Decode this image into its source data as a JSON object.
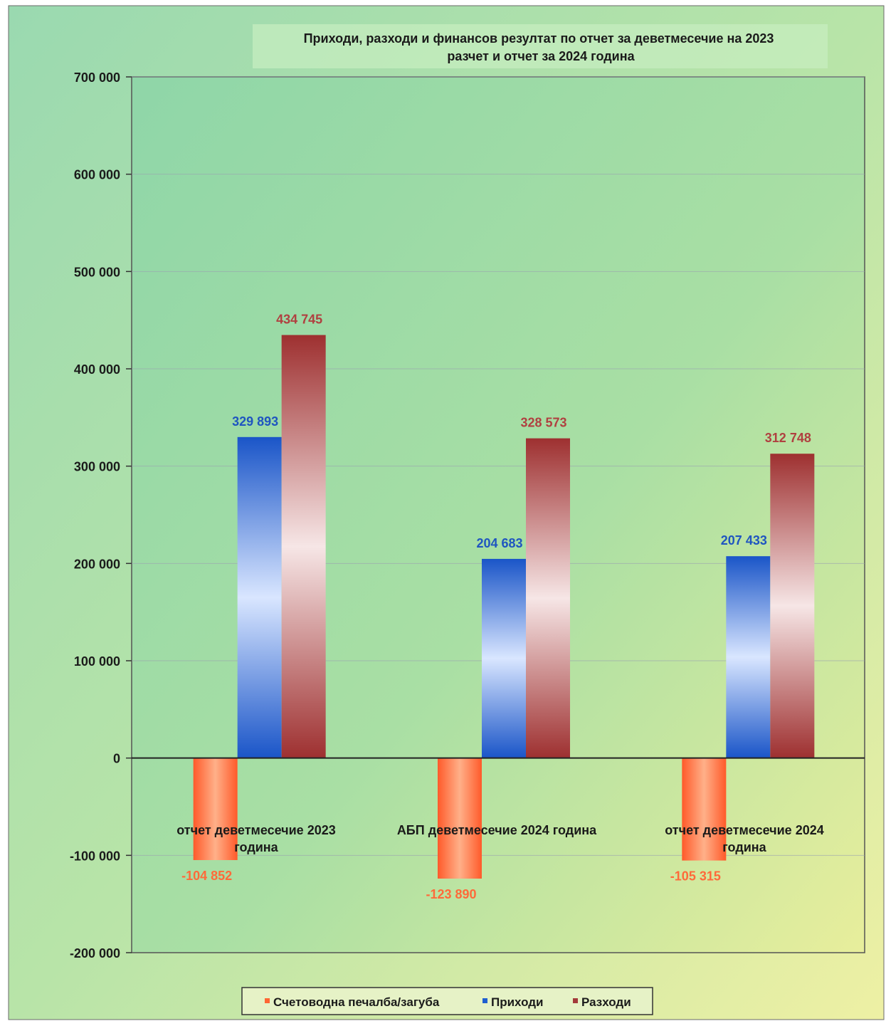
{
  "chart_data": {
    "type": "bar",
    "title": "Приходи, разходи и финансов резултат по отчет за деветмесечие на 2023",
    "subtitle": "разчет и отчет за 2024 година",
    "categories": [
      [
        "отчет деветмесечие 2023",
        "година"
      ],
      [
        "АБП деветмесечие  2024 година"
      ],
      [
        "отчет деветмесечие 2024",
        "година"
      ]
    ],
    "series": [
      {
        "name": "Счетоводна печалба/загуба",
        "values": [
          -104852,
          -123890,
          -105315
        ],
        "labels": [
          "-104 852",
          "-123 890",
          "-105 315"
        ],
        "color": "#ff6633"
      },
      {
        "name": "Приходи",
        "values": [
          329893,
          204683,
          207433
        ],
        "labels": [
          "329 893",
          "204 683",
          "207 433"
        ],
        "color": "#1f5fd0"
      },
      {
        "name": "Разходи",
        "values": [
          434745,
          328573,
          312748
        ],
        "labels": [
          "434 745",
          "328 573",
          "312 748"
        ],
        "color": "#a33a3a"
      }
    ],
    "ylim": [
      -200000,
      700000
    ],
    "yticks": [
      700000,
      600000,
      500000,
      400000,
      300000,
      200000,
      100000,
      0,
      -100000,
      -200000
    ],
    "ytick_labels": [
      "700 000",
      "600 000",
      "500 000",
      "400 000",
      "300 000",
      "200 000",
      "100 000",
      "0",
      "-100 000",
      "-200 000"
    ],
    "grid": true,
    "legend_position": "bottom"
  }
}
